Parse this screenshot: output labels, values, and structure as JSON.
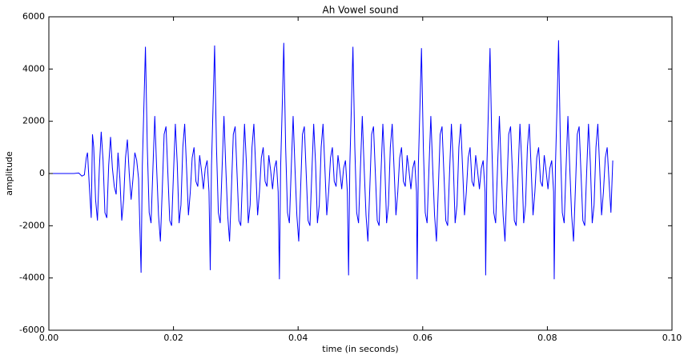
{
  "chart_data": {
    "type": "line",
    "title": "Ah Vowel sound",
    "x_label": "time (in seconds)",
    "y_label": "amplitude",
    "xlim": [
      0,
      0.1
    ],
    "ylim": [
      -6000,
      6000
    ],
    "xticks": [
      {
        "value": 0,
        "label": "0.00"
      },
      {
        "value": 0.02,
        "label": "0.02"
      },
      {
        "value": 0.04,
        "label": "0.04"
      },
      {
        "value": 0.06,
        "label": "0.06"
      },
      {
        "value": 0.08,
        "label": "0.08"
      },
      {
        "value": 0.1,
        "label": "0.10"
      }
    ],
    "yticks": [
      -6000,
      -4000,
      -2000,
      0,
      2000,
      4000,
      6000
    ],
    "grid": false,
    "series": [
      {
        "color": "#0000ff",
        "x": [
          0,
          0.004,
          0.0048,
          0.0053,
          0.0057,
          0.006,
          0.0062,
          0.0065,
          0.0068,
          0.007,
          0.0072,
          0.0075,
          0.0078,
          0.0081,
          0.0084,
          0.0087,
          0.009,
          0.0093,
          0.0096,
          0.0099,
          0.0102,
          0.0105,
          0.0108,
          0.0111,
          0.0114,
          0.0117,
          0.012,
          0.0123,
          0.0126,
          0.0129,
          0.0132,
          0.0135,
          0.0138,
          0.0141,
          0.0144,
          0.0148,
          0.015,
          0.0153,
          0.0155,
          0.0158,
          0.0161,
          0.0164,
          0.0167,
          0.017,
          0.0173,
          0.0176,
          0.0179,
          0.0182,
          0.0185,
          0.0188,
          0.0191,
          0.0194,
          0.0197,
          0.02,
          0.0203,
          0.0206,
          0.0209,
          0.0212,
          0.0215,
          0.0218,
          0.0221,
          0.0224,
          0.0227,
          0.023,
          0.0233,
          0.0236,
          0.0239,
          0.0242,
          0.0245,
          0.0248,
          0.0251,
          0.0254,
          0.0257,
          0.0259,
          0.0261,
          0.0264,
          0.0266,
          0.0269,
          0.0272,
          0.0275,
          0.0278,
          0.0281,
          0.0284,
          0.0287,
          0.029,
          0.0293,
          0.0296,
          0.0299,
          0.0302,
          0.0305,
          0.0308,
          0.0311,
          0.0314,
          0.0317,
          0.032,
          0.0323,
          0.0326,
          0.0329,
          0.0332,
          0.0335,
          0.0338,
          0.0341,
          0.0344,
          0.0347,
          0.035,
          0.0353,
          0.0356,
          0.0359,
          0.0362,
          0.0365,
          0.0368,
          0.037,
          0.0372,
          0.0375,
          0.0377,
          0.038,
          0.0383,
          0.0386,
          0.0389,
          0.0392,
          0.0395,
          0.0398,
          0.0401,
          0.0404,
          0.0407,
          0.041,
          0.0413,
          0.0416,
          0.0419,
          0.0422,
          0.0425,
          0.0428,
          0.0431,
          0.0434,
          0.0437,
          0.044,
          0.0443,
          0.0446,
          0.0449,
          0.0452,
          0.0455,
          0.0458,
          0.0461,
          0.0464,
          0.0467,
          0.047,
          0.0473,
          0.0476,
          0.0479,
          0.0481,
          0.0483,
          0.0486,
          0.0488,
          0.0491,
          0.0494,
          0.0497,
          0.05,
          0.0503,
          0.0506,
          0.0509,
          0.0512,
          0.0515,
          0.0518,
          0.0521,
          0.0524,
          0.0527,
          0.053,
          0.0533,
          0.0536,
          0.0539,
          0.0542,
          0.0545,
          0.0548,
          0.0551,
          0.0554,
          0.0557,
          0.056,
          0.0563,
          0.0566,
          0.0569,
          0.0572,
          0.0575,
          0.0578,
          0.0581,
          0.0584,
          0.0587,
          0.059,
          0.0591,
          0.0593,
          0.0596,
          0.0598,
          0.0601,
          0.0604,
          0.0607,
          0.061,
          0.0613,
          0.0616,
          0.0619,
          0.0622,
          0.0625,
          0.0628,
          0.0631,
          0.0634,
          0.0637,
          0.064,
          0.0643,
          0.0646,
          0.0649,
          0.0652,
          0.0655,
          0.0658,
          0.0661,
          0.0664,
          0.0667,
          0.067,
          0.0673,
          0.0676,
          0.0679,
          0.0682,
          0.0685,
          0.0688,
          0.0691,
          0.0694,
          0.0697,
          0.07,
          0.0701,
          0.0703,
          0.0706,
          0.0708,
          0.0711,
          0.0714,
          0.0717,
          0.072,
          0.0723,
          0.0726,
          0.0729,
          0.0732,
          0.0735,
          0.0738,
          0.0741,
          0.0744,
          0.0747,
          0.075,
          0.0753,
          0.0756,
          0.0759,
          0.0762,
          0.0765,
          0.0768,
          0.0771,
          0.0774,
          0.0777,
          0.078,
          0.0783,
          0.0786,
          0.0789,
          0.0792,
          0.0795,
          0.0798,
          0.0801,
          0.0804,
          0.0807,
          0.081,
          0.0811,
          0.0813,
          0.0816,
          0.0818,
          0.0821,
          0.0824,
          0.0827,
          0.083,
          0.0833,
          0.0836,
          0.0839,
          0.0842,
          0.0845,
          0.0848,
          0.0851,
          0.0854,
          0.0857,
          0.086,
          0.0863,
          0.0866,
          0.0869,
          0.0872,
          0.0875,
          0.0878,
          0.0881,
          0.0884,
          0.0887,
          0.089,
          0.0893,
          0.0896,
          0.0899,
          0.0902,
          0.0905
        ],
        "values": [
          0,
          0,
          20,
          -100,
          -50,
          600,
          800,
          -500,
          -1700,
          1500,
          1000,
          -1000,
          -1800,
          200,
          1600,
          500,
          -1500,
          -1700,
          300,
          1400,
          200,
          -500,
          -800,
          800,
          -200,
          -1800,
          -1000,
          600,
          1300,
          0,
          -1000,
          -200,
          800,
          500,
          -200,
          -3800,
          300,
          3000,
          4850,
          1000,
          -1500,
          -1900,
          200,
          2200,
          200,
          -1600,
          -2600,
          -600,
          1500,
          1800,
          0,
          -1800,
          -2000,
          0,
          1900,
          400,
          -1900,
          -1200,
          1000,
          1900,
          200,
          -1600,
          -700,
          600,
          1000,
          -300,
          -500,
          700,
          100,
          -600,
          200,
          500,
          -700,
          -3700,
          300,
          3000,
          4900,
          1000,
          -1500,
          -1900,
          200,
          2200,
          200,
          -1600,
          -2600,
          -600,
          1500,
          1800,
          0,
          -1800,
          -2000,
          0,
          1900,
          400,
          -1900,
          -1200,
          1000,
          1900,
          200,
          -1600,
          -700,
          600,
          1000,
          -300,
          -500,
          700,
          100,
          -600,
          200,
          500,
          -700,
          -4050,
          300,
          3000,
          5000,
          1000,
          -1500,
          -1900,
          200,
          2200,
          200,
          -1600,
          -2600,
          -600,
          1500,
          1800,
          0,
          -1800,
          -2000,
          0,
          1900,
          400,
          -1900,
          -1200,
          1000,
          1900,
          200,
          -1600,
          -700,
          600,
          1000,
          -300,
          -500,
          700,
          100,
          -600,
          200,
          500,
          -700,
          -3900,
          300,
          3000,
          4850,
          1000,
          -1500,
          -1900,
          200,
          2200,
          200,
          -1600,
          -2600,
          -600,
          1500,
          1800,
          0,
          -1800,
          -2000,
          0,
          1900,
          400,
          -1900,
          -1200,
          1000,
          1900,
          200,
          -1600,
          -700,
          600,
          1000,
          -300,
          -500,
          700,
          100,
          -600,
          200,
          500,
          -700,
          -4050,
          300,
          3000,
          4800,
          1000,
          -1500,
          -1900,
          200,
          2200,
          200,
          -1600,
          -2600,
          -600,
          1500,
          1800,
          0,
          -1800,
          -2000,
          0,
          1900,
          400,
          -1900,
          -1200,
          1000,
          1900,
          200,
          -1600,
          -700,
          600,
          1000,
          -300,
          -500,
          700,
          100,
          -600,
          200,
          500,
          -700,
          -3900,
          300,
          3000,
          4800,
          1000,
          -1500,
          -1900,
          200,
          2200,
          200,
          -1600,
          -2600,
          -600,
          1500,
          1800,
          0,
          -1800,
          -2000,
          0,
          1900,
          400,
          -1900,
          -1200,
          1000,
          1900,
          200,
          -1600,
          -700,
          600,
          1000,
          -300,
          -500,
          700,
          100,
          -600,
          200,
          500,
          -700,
          -4050,
          300,
          3000,
          5100,
          1000,
          -1500,
          -1900,
          200,
          2200,
          200,
          -1600,
          -2600,
          -600,
          1500,
          1800,
          0,
          -1800,
          -2000,
          0,
          1900,
          400,
          -1900,
          -1200,
          1000,
          1900,
          200,
          -1600,
          -700,
          600,
          1000,
          -300,
          -1500,
          500
        ]
      }
    ]
  }
}
